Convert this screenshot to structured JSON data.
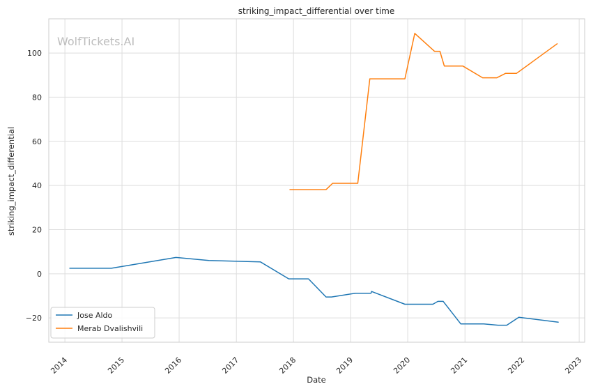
{
  "chart_data": {
    "type": "line",
    "title": "striking_impact_differential over time",
    "xlabel": "Date",
    "ylabel": "striking_impact_differential",
    "watermark": "WolfTickets.AI",
    "x_ticks": [
      "2014",
      "2015",
      "2016",
      "2017",
      "2018",
      "2019",
      "2020",
      "2021",
      "2022",
      "2023"
    ],
    "y_ticks": [
      -20,
      0,
      20,
      40,
      60,
      80,
      100
    ],
    "xlim": [
      "2013-09-20",
      "2023-02-05"
    ],
    "ylim": [
      -31,
      115.5
    ],
    "grid": true,
    "legend_position": "lower-left",
    "series": [
      {
        "name": "Jose Aldo",
        "color": "#1f77b4",
        "points": [
          [
            "2014-02-01",
            2.5
          ],
          [
            "2014-10-25",
            2.5
          ],
          [
            "2015-12-12",
            7.4
          ],
          [
            "2016-07-09",
            6.0
          ],
          [
            "2017-06-03",
            5.4
          ],
          [
            "2017-12-02",
            -2.3
          ],
          [
            "2018-04-07",
            -2.3
          ],
          [
            "2018-07-28",
            -10.5
          ],
          [
            "2018-09-01",
            -10.5
          ],
          [
            "2019-02-02",
            -8.8
          ],
          [
            "2019-05-11",
            -8.8
          ],
          [
            "2019-05-15",
            -8.0
          ],
          [
            "2019-12-14",
            -13.8
          ],
          [
            "2020-06-10",
            -13.8
          ],
          [
            "2020-07-12",
            -12.5
          ],
          [
            "2020-08-15",
            -12.5
          ],
          [
            "2020-12-05",
            -22.7
          ],
          [
            "2021-05-01",
            -22.7
          ],
          [
            "2021-08-01",
            -23.3
          ],
          [
            "2021-09-25",
            -23.3
          ],
          [
            "2021-12-11",
            -19.7
          ],
          [
            "2022-08-20",
            -21.9
          ]
        ]
      },
      {
        "name": "Merab Dvalishvili",
        "color": "#ff7f0e",
        "points": [
          [
            "2017-12-09",
            38.1
          ],
          [
            "2018-07-28",
            38.1
          ],
          [
            "2018-09-08",
            41.0
          ],
          [
            "2019-02-16",
            41.0
          ],
          [
            "2019-05-04",
            88.3
          ],
          [
            "2019-12-14",
            88.3
          ],
          [
            "2020-02-15",
            108.9
          ],
          [
            "2020-06-20",
            100.8
          ],
          [
            "2020-07-25",
            100.8
          ],
          [
            "2020-08-22",
            94.1
          ],
          [
            "2020-12-19",
            94.1
          ],
          [
            "2021-04-24",
            88.8
          ],
          [
            "2021-07-24",
            88.8
          ],
          [
            "2021-09-18",
            90.8
          ],
          [
            "2021-11-27",
            90.8
          ],
          [
            "2022-08-13",
            104.2
          ]
        ]
      }
    ]
  }
}
